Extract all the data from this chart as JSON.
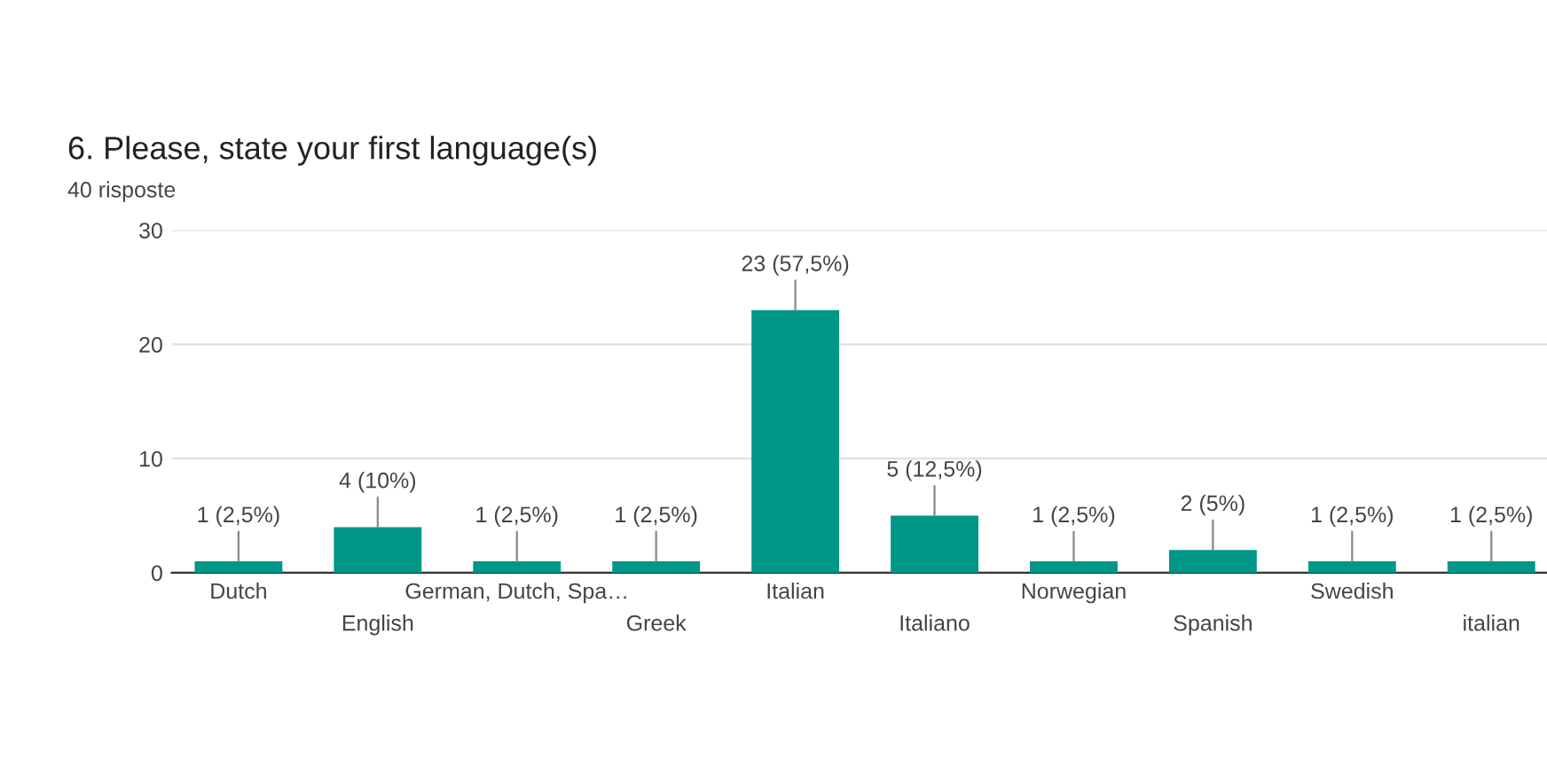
{
  "chart_data": {
    "type": "bar",
    "title": "6. Please, state your first language(s)",
    "subtitle": "40 risposte",
    "categories": [
      "Dutch",
      "English",
      "German, Dutch, Spa…",
      "Greek",
      "Italian",
      "Italiano",
      "Norwegian",
      "Spanish",
      "Swedish",
      "italian"
    ],
    "values": [
      1,
      4,
      1,
      1,
      23,
      5,
      1,
      2,
      1,
      1
    ],
    "value_labels": [
      "1 (2,5%)",
      "4 (10%)",
      "1 (2,5%)",
      "1 (2,5%)",
      "23 (57,5%)",
      "5 (12,5%)",
      "1 (2,5%)",
      "2 (5%)",
      "1 (2,5%)",
      "1 (2,5%)"
    ],
    "color": "#009688",
    "ylim": [
      0,
      30
    ],
    "yticks": [
      0,
      10,
      20,
      30
    ],
    "grid": "y",
    "legend": false
  }
}
